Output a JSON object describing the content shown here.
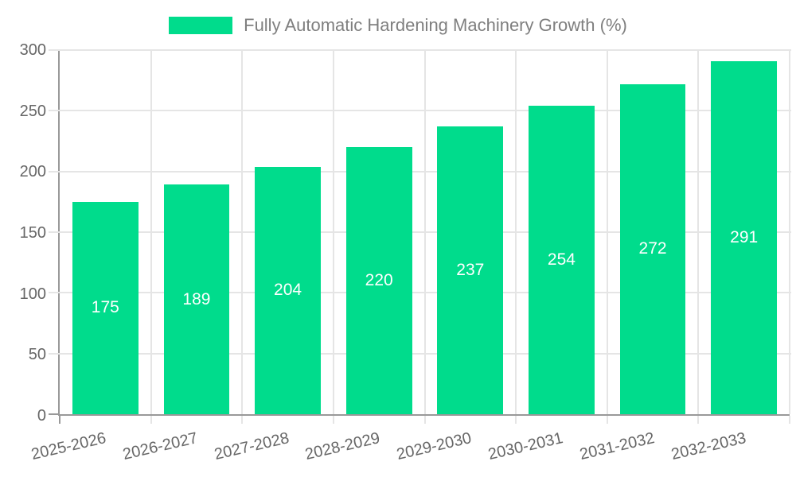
{
  "legend": {
    "label": "Fully Automatic Hardening Machinery Growth (%)"
  },
  "colors": {
    "background": "#FFFFFF",
    "bar": "#00DC8C",
    "grid": "#E5E5E5",
    "axis": "#999999",
    "tick_label": "#666666",
    "legend_text": "#7F7F7F",
    "value_label": "#FFFFFF"
  },
  "chart_data": {
    "type": "bar",
    "title": "Fully Automatic Hardening Machinery Growth (%)",
    "legend_label": "Fully Automatic Hardening Machinery Growth (%)",
    "categories": [
      "2025-2026",
      "2026-2027",
      "2027-2028",
      "2028-2029",
      "2029-2030",
      "2030-2031",
      "2031-2032",
      "2032-2033"
    ],
    "values": [
      175,
      189,
      204,
      220,
      237,
      254,
      272,
      291
    ],
    "xlabel": "",
    "ylabel": "",
    "ylim": [
      0,
      300
    ],
    "yticks": [
      0,
      50,
      100,
      150,
      200,
      250,
      300
    ],
    "grid": true,
    "legend_position": "top",
    "value_label_position": "inside-middle",
    "x_tick_rotation_deg": -13,
    "bar_width_ratio": 0.7225
  }
}
